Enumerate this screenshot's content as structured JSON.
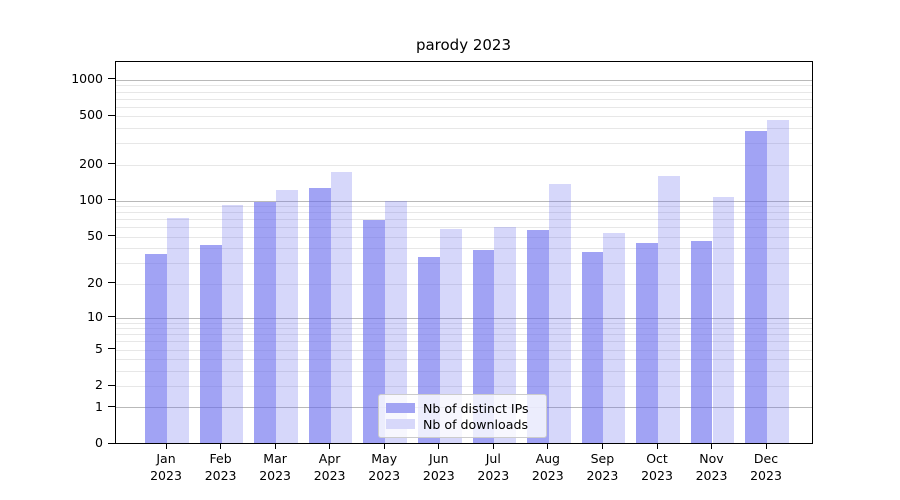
{
  "title": "parody 2023",
  "legend": {
    "items": [
      {
        "label": "Nb of distinct IPs",
        "color": "#a2a4f3"
      },
      {
        "label": "Nb of downloads",
        "color": "#d7d8fa"
      }
    ]
  },
  "y_axis": {
    "tick_labels": [
      "1000",
      "500",
      "200",
      "100",
      "50",
      "20",
      "10",
      "5",
      "2",
      "1",
      "0"
    ]
  },
  "colors": {
    "bar_dark_fill": "rgba(104,107,238,0.62)",
    "bar_light_fill": "rgba(104,107,238,0.27)",
    "major_grid": "#b9b9b9",
    "minor_grid": "#e7e7e7"
  },
  "chart_data": {
    "type": "bar",
    "title": "parody 2023",
    "categories": [
      "Jan 2023",
      "Feb 2023",
      "Mar 2023",
      "Apr 2023",
      "May 2023",
      "Jun 2023",
      "Jul 2023",
      "Aug 2023",
      "Sep 2023",
      "Oct 2023",
      "Nov 2023",
      "Dec 2023"
    ],
    "series": [
      {
        "name": "Nb of distinct IPs",
        "key": "ips",
        "values": [
          36,
          43,
          97,
          129,
          69,
          34,
          39,
          57,
          37,
          44,
          46,
          380
        ],
        "color": "#a2a4f3",
        "fill": "rgba(104,107,238,0.62)"
      },
      {
        "name": "Nb of downloads",
        "key": "downloads",
        "values": [
          72,
          93,
          122,
          172,
          100,
          58,
          61,
          139,
          54,
          162,
          108,
          465
        ],
        "color": "#d7d8fa",
        "fill": "rgba(104,107,238,0.27)"
      }
    ],
    "yscale": "log1p",
    "yticks": [
      0,
      1,
      2,
      5,
      10,
      20,
      50,
      100,
      200,
      500,
      1000
    ],
    "ylim": [
      0,
      1400
    ],
    "xlabel": "",
    "ylabel": "",
    "grid": true,
    "legend_position": "lower center"
  }
}
